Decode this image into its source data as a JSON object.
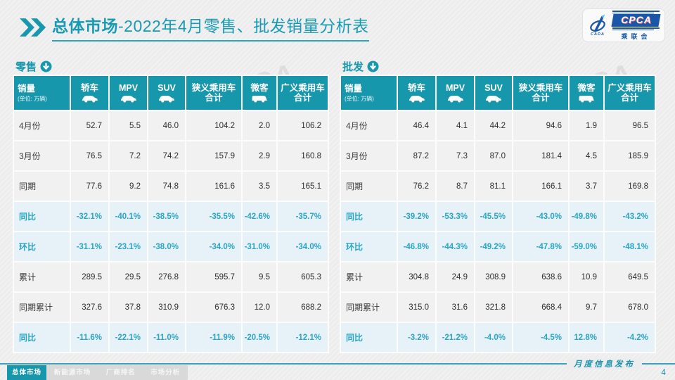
{
  "header": {
    "title_bold": "总体市场",
    "title_rest": "-2022年4月零售、批发销量分析表",
    "logo": {
      "cpca": "CPCA",
      "sub": "乘联会",
      "cada": "CADA"
    }
  },
  "watermark": "CPCA",
  "columns": [
    {
      "name": "sales",
      "label": "销量",
      "sub": "(单位: 万辆)"
    },
    {
      "name": "sedan",
      "label": "轿车",
      "icon": "sedan-icon"
    },
    {
      "name": "mpv",
      "label": "MPV",
      "icon": "mpv-icon"
    },
    {
      "name": "suv",
      "label": "SUV",
      "icon": "suv-icon"
    },
    {
      "name": "narrow-pv-total",
      "label": "狭义乘用车",
      "label2": "合计"
    },
    {
      "name": "microvan",
      "label": "微客",
      "icon": "van-icon"
    },
    {
      "name": "broad-pv-total",
      "label": "广义乘用车",
      "label2": "合计"
    }
  ],
  "tables": [
    {
      "label": "零售",
      "rows": [
        {
          "label": "4月份",
          "type": "normal",
          "values": [
            "52.7",
            "5.5",
            "46.0",
            "104.2",
            "2.0",
            "106.2"
          ]
        },
        {
          "label": "3月份",
          "type": "normal",
          "values": [
            "76.5",
            "7.2",
            "74.2",
            "157.9",
            "2.9",
            "160.8"
          ]
        },
        {
          "label": "同期",
          "type": "normal",
          "values": [
            "77.6",
            "9.2",
            "74.8",
            "161.6",
            "3.5",
            "165.1"
          ]
        },
        {
          "label": "同比",
          "type": "percent",
          "values": [
            "-32.1%",
            "-40.1%",
            "-38.5%",
            "-35.5%",
            "-42.6%",
            "-35.7%"
          ]
        },
        {
          "label": "环比",
          "type": "percent",
          "values": [
            "-31.1%",
            "-23.1%",
            "-38.0%",
            "-34.0%",
            "-31.0%",
            "-34.0%"
          ]
        },
        {
          "label": "累计",
          "type": "normal",
          "values": [
            "289.5",
            "29.5",
            "276.8",
            "595.7",
            "9.5",
            "605.3"
          ]
        },
        {
          "label": "同期累计",
          "type": "normal",
          "values": [
            "327.6",
            "37.8",
            "310.9",
            "676.3",
            "12.0",
            "688.2"
          ]
        },
        {
          "label": "同比",
          "type": "percent",
          "values": [
            "-11.6%",
            "-22.1%",
            "-11.0%",
            "-11.9%",
            "-20.5%",
            "-12.1%"
          ]
        }
      ]
    },
    {
      "label": "批发",
      "rows": [
        {
          "label": "4月份",
          "type": "normal",
          "values": [
            "46.4",
            "4.1",
            "44.2",
            "94.6",
            "1.9",
            "96.5"
          ]
        },
        {
          "label": "3月份",
          "type": "normal",
          "values": [
            "87.2",
            "7.3",
            "87.0",
            "181.4",
            "4.5",
            "185.9"
          ]
        },
        {
          "label": "同期",
          "type": "normal",
          "values": [
            "76.2",
            "8.7",
            "81.1",
            "166.1",
            "3.7",
            "169.8"
          ]
        },
        {
          "label": "同比",
          "type": "percent",
          "values": [
            "-39.2%",
            "-53.3%",
            "-45.5%",
            "-43.0%",
            "-49.8%",
            "-43.2%"
          ]
        },
        {
          "label": "环比",
          "type": "percent",
          "values": [
            "-46.8%",
            "-44.3%",
            "-49.2%",
            "-47.8%",
            "-59.0%",
            "-48.1%"
          ]
        },
        {
          "label": "累计",
          "type": "normal",
          "values": [
            "304.8",
            "24.9",
            "308.9",
            "638.6",
            "10.9",
            "649.5"
          ]
        },
        {
          "label": "同期累计",
          "type": "normal",
          "values": [
            "315.0",
            "31.6",
            "321.8",
            "668.4",
            "9.7",
            "678.0"
          ]
        },
        {
          "label": "同比",
          "type": "percent",
          "values": [
            "-3.2%",
            "-21.2%",
            "-4.0%",
            "-4.5%",
            "12.8%",
            "-4.2%"
          ]
        }
      ]
    }
  ],
  "icons": {
    "sedan-icon": "car",
    "mpv-icon": "car",
    "suv-icon": "car",
    "van-icon": "van",
    "circle-down-arrow-icon": "circle-down-arrow",
    "double-chevron-icon": "double-chevron-right"
  },
  "footer": {
    "tabs": [
      {
        "label": "总体市场",
        "active": true
      },
      {
        "label": "新能源市场",
        "active": false
      },
      {
        "label": "厂商排名",
        "active": false
      },
      {
        "label": "市场分析",
        "active": false
      }
    ],
    "publish_label": "月度信息发布",
    "page_number": "4"
  },
  "colors": {
    "accent_teal": "#1797ac",
    "title_teal": "#189ab4",
    "percent_text": "#2aa5c5",
    "percent_row_bg": "#e7f2f8",
    "row_bg": "#f1f1f1",
    "logo_blue": "#1b57a6",
    "footer_tab_inactive_bg": "#d9d9d9",
    "page_bg": "#ededed"
  }
}
